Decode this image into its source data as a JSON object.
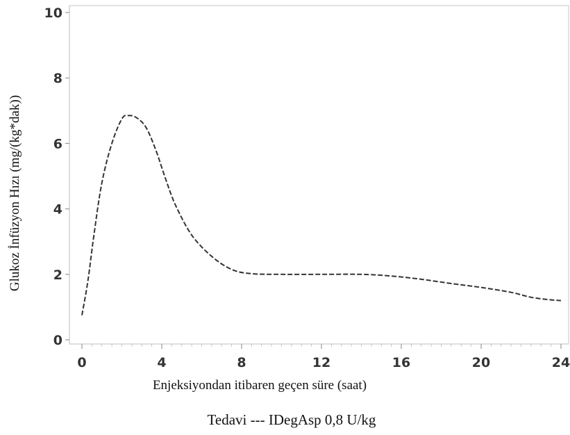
{
  "chart_data": {
    "type": "line",
    "title": "",
    "xlabel": "Enjeksiyondan itibaren geçen süre (saat)",
    "ylabel": "Glukoz İnfüzyon Hızı (mg/(kg*dak))",
    "xlim": [
      0,
      24
    ],
    "ylim": [
      0,
      10
    ],
    "xticks": [
      0,
      4,
      8,
      12,
      16,
      20,
      24
    ],
    "yticks": [
      0,
      2,
      4,
      6,
      8,
      10
    ],
    "xtick_labels": [
      "0",
      "4",
      "8",
      "12",
      "16",
      "20",
      "24"
    ],
    "ytick_labels": [
      "0",
      "2",
      "4",
      "6",
      "8",
      "10"
    ],
    "grid": false,
    "legend": {
      "placement": "bottom-center",
      "text": "Tedavi --- IDegAsp 0,8 U/kg"
    },
    "series": [
      {
        "name": "IDegAsp 0,8 U/kg",
        "line_style": "dashed",
        "color": "#333333",
        "x": [
          0,
          0.3,
          0.6,
          1.0,
          1.5,
          2.0,
          2.3,
          2.7,
          3.2,
          3.7,
          4.2,
          4.7,
          5.5,
          6.5,
          7.5,
          8.5,
          10,
          12,
          14,
          15.5,
          17,
          18.5,
          20,
          21.5,
          22.5,
          23.5,
          24
        ],
        "y": [
          0.75,
          1.8,
          3.2,
          4.8,
          6.0,
          6.75,
          6.85,
          6.8,
          6.5,
          5.8,
          4.9,
          4.1,
          3.2,
          2.55,
          2.15,
          2.02,
          2.0,
          2.0,
          2.0,
          1.95,
          1.85,
          1.72,
          1.6,
          1.45,
          1.3,
          1.22,
          1.2
        ]
      }
    ]
  }
}
